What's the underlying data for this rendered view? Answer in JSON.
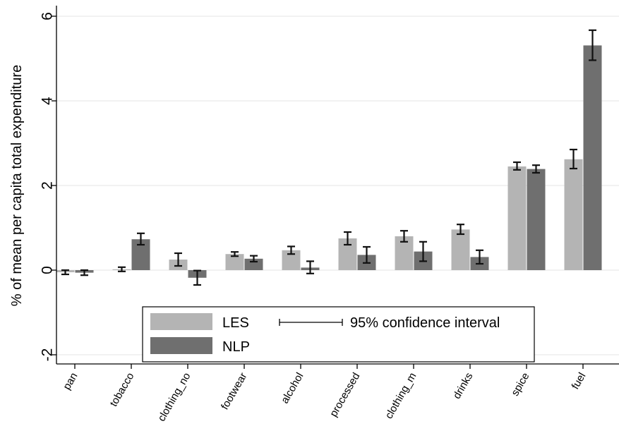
{
  "chart_data": {
    "type": "bar",
    "title": "",
    "xlabel": "",
    "ylabel": "% of mean per capita total expenditure",
    "ylim": [
      -2.2,
      6.3
    ],
    "yticks": [
      -2,
      0,
      2,
      4,
      6
    ],
    "ytick_labels": [
      "-2",
      "0",
      "2",
      "4",
      "6"
    ],
    "grid": true,
    "legend_placement": "bottom-center",
    "categories": [
      "pan",
      "tobacco",
      "clothing_no",
      "footwear",
      "alcohol",
      "processed",
      "clothing_m",
      "drinks",
      "spice",
      "fuel"
    ],
    "series": [
      {
        "name": "LES",
        "color": "#b4b4b4",
        "values": [
          -0.05,
          0.02,
          0.25,
          0.38,
          0.47,
          0.75,
          0.8,
          0.96,
          2.45,
          2.62
        ],
        "ci_low": [
          -0.1,
          -0.03,
          0.1,
          0.33,
          0.38,
          0.6,
          0.67,
          0.85,
          2.37,
          2.4
        ],
        "ci_high": [
          0.0,
          0.07,
          0.4,
          0.43,
          0.56,
          0.9,
          0.93,
          1.08,
          2.55,
          2.85
        ]
      },
      {
        "name": "NLP",
        "color": "#6f6f6f",
        "values": [
          -0.06,
          0.73,
          -0.18,
          0.27,
          0.06,
          0.36,
          0.44,
          0.31,
          2.39,
          5.31
        ],
        "ci_low": [
          -0.12,
          0.6,
          -0.35,
          0.2,
          -0.08,
          0.17,
          0.21,
          0.15,
          2.3,
          4.96
        ],
        "ci_high": [
          0.0,
          0.87,
          -0.01,
          0.34,
          0.21,
          0.55,
          0.67,
          0.47,
          2.48,
          5.67
        ]
      }
    ],
    "legend": {
      "series_labels": [
        "LES",
        "NLP"
      ],
      "ci_label": "95% confidence interval"
    }
  }
}
